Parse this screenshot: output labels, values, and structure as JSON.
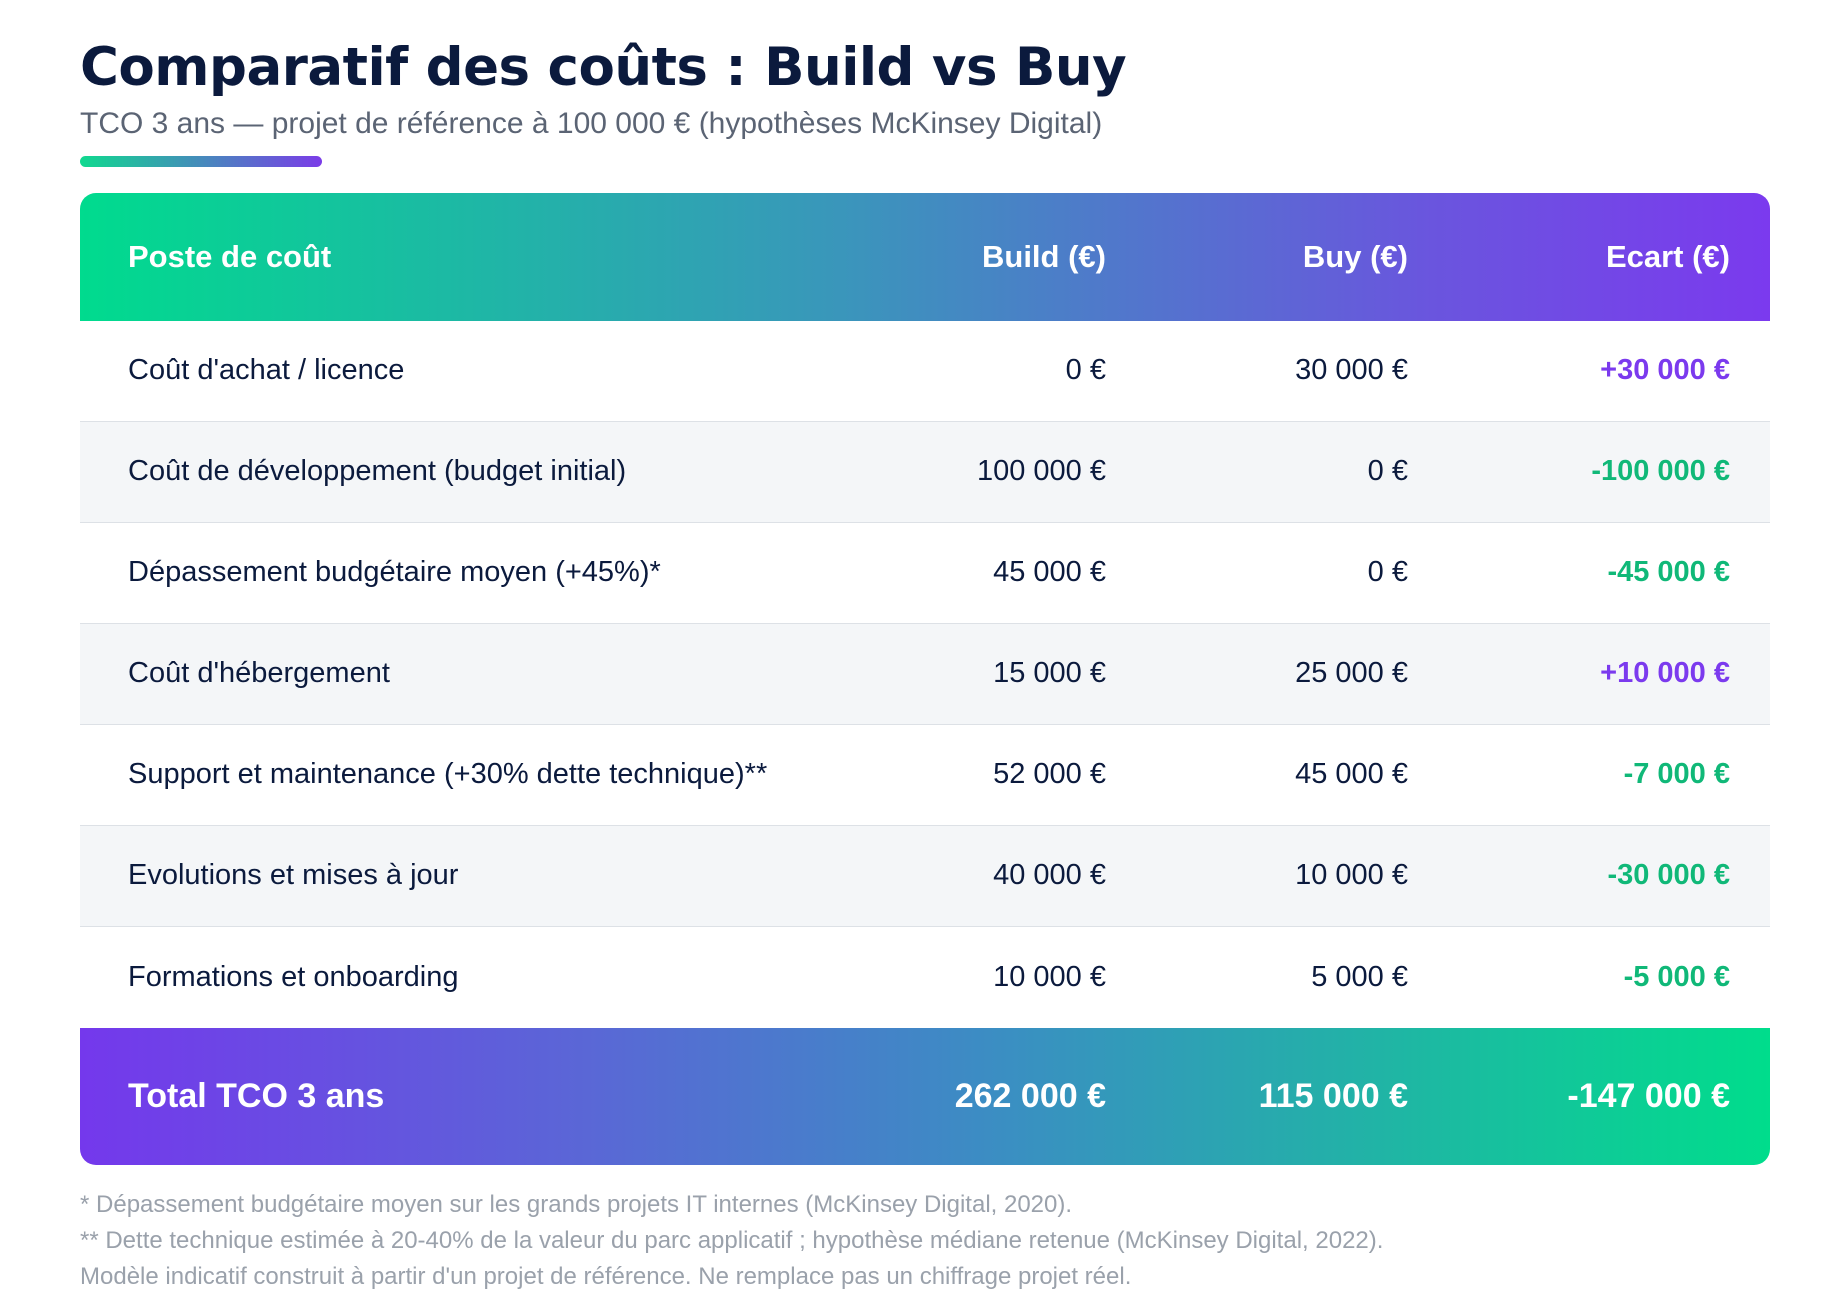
{
  "header": {
    "title": "Comparatif des coûts : Build vs Buy",
    "subtitle": "TCO 3 ans — projet de référence à 100 000 € (hypothèses McKinsey Digital)"
  },
  "table": {
    "columns": [
      "Poste de coût",
      "Build (€)",
      "Buy (€)",
      "Ecart (€)"
    ],
    "rows": [
      {
        "label": "Coût d'achat / licence",
        "build": "0 €",
        "buy": "30 000 €",
        "ecart": "+30 000 €"
      },
      {
        "label": "Coût de développement (budget initial)",
        "build": "100 000 €",
        "buy": "0 €",
        "ecart": "-100 000 €"
      },
      {
        "label": "Dépassement budgétaire moyen (+45%)*",
        "build": "45 000 €",
        "buy": "0 €",
        "ecart": "-45 000 €"
      },
      {
        "label": "Coût d'hébergement",
        "build": "15 000 €",
        "buy": "25 000 €",
        "ecart": "+10 000 €"
      },
      {
        "label": "Support et maintenance (+30% dette technique)**",
        "build": "52 000 €",
        "buy": "45 000 €",
        "ecart": "-7 000 €"
      },
      {
        "label": "Evolutions et mises à jour",
        "build": "40 000 €",
        "buy": "10 000 €",
        "ecart": "-30 000 €"
      },
      {
        "label": "Formations et onboarding",
        "build": "10 000 €",
        "buy": "5 000 €",
        "ecart": "-5 000 €"
      }
    ],
    "total": {
      "label": "Total TCO 3 ans",
      "build": "262 000 €",
      "buy": "115 000 €",
      "ecart": "-147 000 €"
    }
  },
  "footnotes": [
    "* Dépassement budgétaire moyen sur les grands projets IT internes (McKinsey Digital, 2020).",
    "** Dette technique estimée à 20-40% de la valeur du parc applicatif ; hypothèse médiane retenue (McKinsey Digital, 2022).",
    "Modèle indicatif construit à partir d'un projet de référence. Ne remplace pas un chiffrage projet réel."
  ],
  "colors": {
    "positive_delta": "#7b3aee",
    "negative_delta": "#10b878",
    "gradient_green": "#00db8e",
    "gradient_purple": "#7b3aee"
  }
}
